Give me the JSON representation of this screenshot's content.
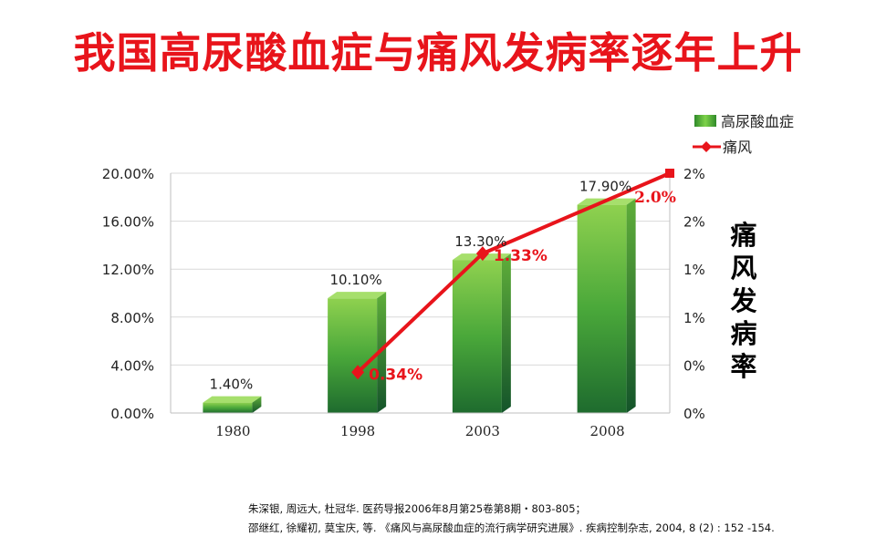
{
  "title": "我国高尿酸血症与痛风发病率逐年上升",
  "chart_data": {
    "type": "bar",
    "categories": [
      "1980",
      "1998",
      "2003",
      "2008"
    ],
    "series": [
      {
        "name": "高尿酸血症",
        "type": "bar",
        "axis": "left",
        "values": [
          1.4,
          10.1,
          13.3,
          17.9
        ],
        "labels": [
          "1.40%",
          "10.10%",
          "13.30%",
          "17.90%"
        ],
        "color": "#3fa535"
      },
      {
        "name": "痛风",
        "type": "line",
        "axis": "right",
        "values": [
          null,
          0.34,
          1.33,
          2.0
        ],
        "labels": [
          "",
          "0.34%",
          "1.33%",
          "2.0%"
        ],
        "color": "#e8141b"
      }
    ],
    "y_left": {
      "min": 0,
      "max": 20,
      "ticks": [
        "0.00%",
        "4.00%",
        "8.00%",
        "12.00%",
        "16.00%",
        "20.00%"
      ]
    },
    "y_right": {
      "min": 0,
      "max": 2,
      "ticks": [
        "0%",
        "0%",
        "1%",
        "1%",
        "2%",
        "2%"
      ]
    },
    "y2label": "痛风发病率",
    "legend_position": "top-right",
    "grid": true
  },
  "references": [
    "朱深银, 周远大, 杜冠华.  医药导报2006年8月第25卷第8期・803-805；",
    "邵继红, 徐耀初, 莫宝庆, 等.  《痛风与高尿酸血症的流行病学研究进展》. 疾病控制杂志,  2004,  8 (2) :  152 -154."
  ]
}
